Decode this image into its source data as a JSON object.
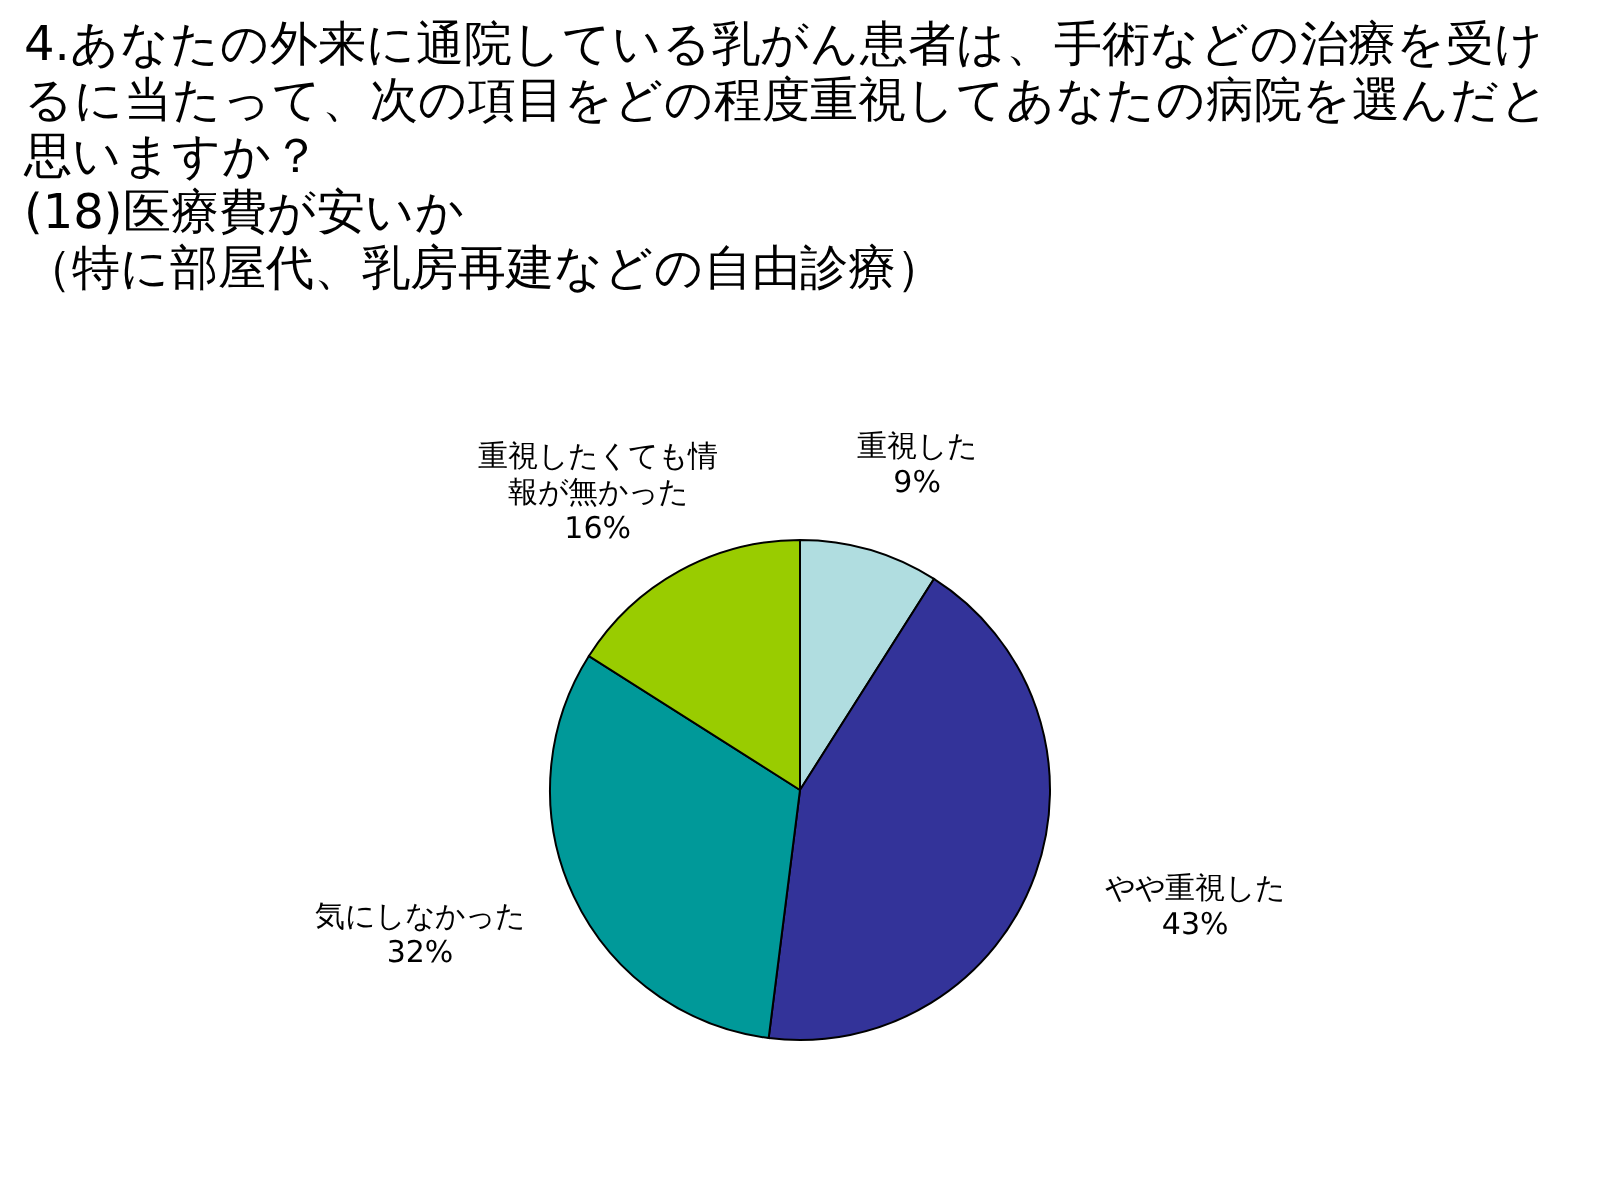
{
  "chart_data": {
    "type": "pie",
    "title": "4.あなたの外来に通院している乳がん患者は、手術などの治療を受けるに当たって、次の項目をどの程度重視してあなたの病院を選んだと思いますか？",
    "subtitle": "(18)医療費が安いか",
    "annotations": [
      "（特に部屋代、乳房再建などの自由診療）"
    ],
    "categories": [
      "重視した",
      "やや重視した",
      "気にしなかった",
      "重視したくても情報が無かった"
    ],
    "values": [
      9,
      43,
      32,
      16
    ],
    "value_labels": [
      "9%",
      "43%",
      "32%",
      "16%"
    ],
    "colors": [
      "#b0dde0",
      "#333399",
      "#009999",
      "#99cc00"
    ]
  }
}
